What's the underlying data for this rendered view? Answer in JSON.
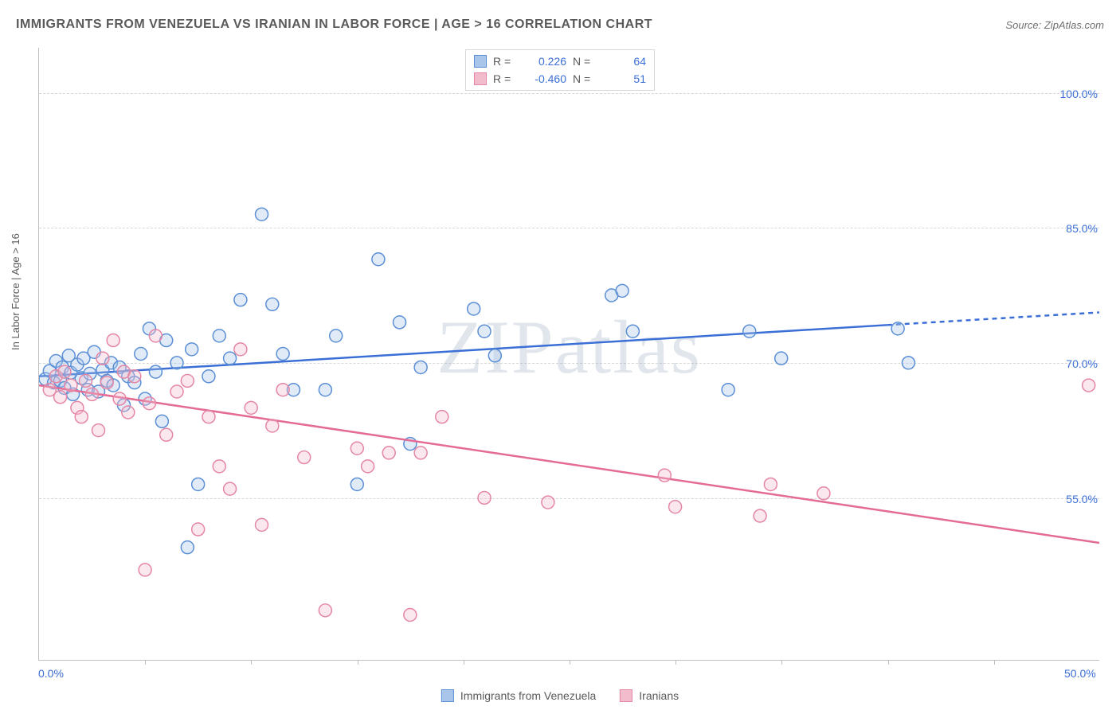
{
  "title": "IMMIGRANTS FROM VENEZUELA VS IRANIAN IN LABOR FORCE | AGE > 16 CORRELATION CHART",
  "source": "Source: ZipAtlas.com",
  "watermark": "ZIPatlas",
  "y_axis_label": "In Labor Force | Age > 16",
  "chart": {
    "type": "scatter",
    "background_color": "#ffffff",
    "grid_color": "#d8d8d8",
    "axis_color": "#bfbfbf",
    "xlim": [
      0,
      50
    ],
    "ylim": [
      37,
      105
    ],
    "x_ticks": [
      0,
      50
    ],
    "x_tick_labels": [
      "0.0%",
      "50.0%"
    ],
    "x_minor_ticks": [
      5,
      10,
      15,
      20,
      25,
      30,
      35,
      40,
      45
    ],
    "y_ticks": [
      55,
      70,
      85,
      100
    ],
    "y_tick_labels": [
      "55.0%",
      "70.0%",
      "85.0%",
      "100.0%"
    ],
    "marker_radius": 8,
    "marker_stroke_width": 1.5,
    "marker_fill_opacity": 0.35,
    "line_width": 2.5,
    "series": [
      {
        "name": "Immigrants from Venezuela",
        "short": "venezuela",
        "color_stroke": "#5b8fd6",
        "color_fill": "#a9c6ea",
        "line_color": "#3b6fd6",
        "R": "0.226",
        "N": "64",
        "trend": {
          "x1": 0,
          "y1": 68.5,
          "x2": 40,
          "y2": 74.2,
          "x2_dash": 50,
          "y2_dash": 75.6
        },
        "points": [
          [
            0.3,
            68.2
          ],
          [
            0.5,
            69.1
          ],
          [
            0.7,
            67.8
          ],
          [
            0.8,
            70.2
          ],
          [
            1.0,
            68.0
          ],
          [
            1.1,
            69.5
          ],
          [
            1.2,
            67.2
          ],
          [
            1.4,
            70.8
          ],
          [
            1.5,
            68.9
          ],
          [
            1.6,
            66.5
          ],
          [
            1.8,
            69.8
          ],
          [
            2.0,
            68.3
          ],
          [
            2.1,
            70.5
          ],
          [
            2.3,
            67.0
          ],
          [
            2.4,
            68.8
          ],
          [
            2.6,
            71.2
          ],
          [
            2.8,
            66.8
          ],
          [
            3.0,
            69.2
          ],
          [
            3.2,
            68.0
          ],
          [
            3.4,
            70.0
          ],
          [
            3.5,
            67.5
          ],
          [
            3.8,
            69.5
          ],
          [
            4.0,
            65.3
          ],
          [
            4.2,
            68.5
          ],
          [
            4.5,
            67.8
          ],
          [
            4.8,
            71.0
          ],
          [
            5.0,
            66.0
          ],
          [
            5.2,
            73.8
          ],
          [
            5.5,
            69.0
          ],
          [
            5.8,
            63.5
          ],
          [
            6.0,
            72.5
          ],
          [
            6.5,
            70.0
          ],
          [
            7.0,
            49.5
          ],
          [
            7.2,
            71.5
          ],
          [
            7.5,
            56.5
          ],
          [
            8.0,
            68.5
          ],
          [
            8.5,
            73.0
          ],
          [
            9.0,
            70.5
          ],
          [
            9.5,
            77.0
          ],
          [
            10.5,
            86.5
          ],
          [
            11.0,
            76.5
          ],
          [
            11.5,
            71.0
          ],
          [
            12.0,
            67.0
          ],
          [
            13.5,
            67.0
          ],
          [
            14.0,
            73.0
          ],
          [
            15.0,
            56.5
          ],
          [
            16.0,
            81.5
          ],
          [
            17.0,
            74.5
          ],
          [
            17.5,
            61.0
          ],
          [
            18.0,
            69.5
          ],
          [
            20.5,
            76.0
          ],
          [
            21.0,
            73.5
          ],
          [
            21.5,
            70.8
          ],
          [
            27.0,
            77.5
          ],
          [
            27.5,
            78.0
          ],
          [
            28.0,
            73.5
          ],
          [
            32.5,
            67.0
          ],
          [
            33.5,
            73.5
          ],
          [
            35.0,
            70.5
          ],
          [
            40.5,
            73.8
          ],
          [
            41.0,
            70.0
          ]
        ]
      },
      {
        "name": "Iranians",
        "short": "iranians",
        "color_stroke": "#e486a4",
        "color_fill": "#f3bccd",
        "line_color": "#e46b93",
        "R": "-0.460",
        "N": "51",
        "trend": {
          "x1": 0,
          "y1": 67.5,
          "x2": 50,
          "y2": 50.0
        },
        "points": [
          [
            0.5,
            67.0
          ],
          [
            0.8,
            68.5
          ],
          [
            1.0,
            66.2
          ],
          [
            1.2,
            69.0
          ],
          [
            1.5,
            67.5
          ],
          [
            1.8,
            65.0
          ],
          [
            2.0,
            64.0
          ],
          [
            2.2,
            68.0
          ],
          [
            2.5,
            66.5
          ],
          [
            2.8,
            62.5
          ],
          [
            3.0,
            70.5
          ],
          [
            3.2,
            67.8
          ],
          [
            3.5,
            72.5
          ],
          [
            3.8,
            66.0
          ],
          [
            4.0,
            69.0
          ],
          [
            4.2,
            64.5
          ],
          [
            4.5,
            68.5
          ],
          [
            5.0,
            47.0
          ],
          [
            5.2,
            65.5
          ],
          [
            5.5,
            73.0
          ],
          [
            6.0,
            62.0
          ],
          [
            6.5,
            66.8
          ],
          [
            7.0,
            68.0
          ],
          [
            7.5,
            51.5
          ],
          [
            8.0,
            64.0
          ],
          [
            8.5,
            58.5
          ],
          [
            9.0,
            56.0
          ],
          [
            9.5,
            71.5
          ],
          [
            10.0,
            65.0
          ],
          [
            10.5,
            52.0
          ],
          [
            11.0,
            63.0
          ],
          [
            11.5,
            67.0
          ],
          [
            12.5,
            59.5
          ],
          [
            13.5,
            42.5
          ],
          [
            15.0,
            60.5
          ],
          [
            15.5,
            58.5
          ],
          [
            16.5,
            60.0
          ],
          [
            17.5,
            42.0
          ],
          [
            18.0,
            60.0
          ],
          [
            19.0,
            64.0
          ],
          [
            21.0,
            55.0
          ],
          [
            24.0,
            54.5
          ],
          [
            29.5,
            57.5
          ],
          [
            30.0,
            54.0
          ],
          [
            34.0,
            53.0
          ],
          [
            34.5,
            56.5
          ],
          [
            37.0,
            55.5
          ],
          [
            49.5,
            67.5
          ]
        ]
      }
    ]
  },
  "legend_top": {
    "r_label": "R =",
    "n_label": "N ="
  },
  "swatch_blue": {
    "fill": "#a9c6ea",
    "stroke": "#5b8fd6"
  },
  "swatch_pink": {
    "fill": "#f3bccd",
    "stroke": "#e486a4"
  }
}
